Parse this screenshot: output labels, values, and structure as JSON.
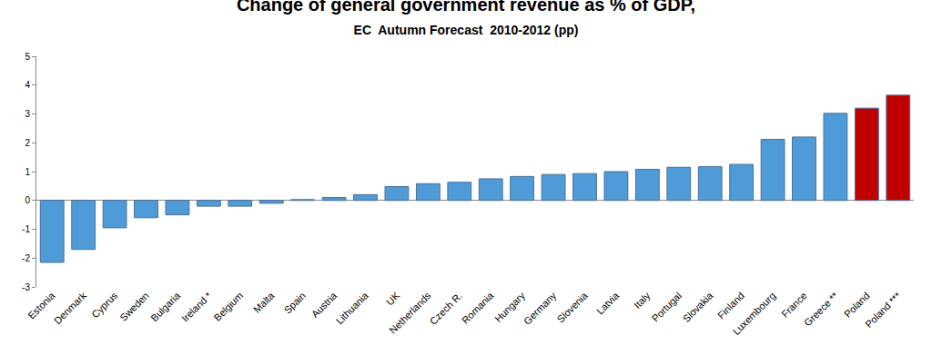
{
  "chart_data": {
    "type": "bar",
    "title": "Change of general government revenue as % of GDP,",
    "subtitle": "EC  Autumn Forecast  2010-2012 (pp)",
    "categories": [
      "Estonia",
      "Denmark",
      "Cyprus",
      "Sweden",
      "Bulgaria",
      "Ireland *",
      "Belgium",
      "Malta",
      "Spain",
      "Austria",
      "Lithuania",
      "UK",
      "Netherlands",
      "Czech R.",
      "Romania",
      "Hungary",
      "Germany",
      "Slovenia",
      "Latvia",
      "Italy",
      "Portugal",
      "Slovakia",
      "Finland",
      "Luxembourg",
      "France",
      "Greece **",
      "Poland",
      "Poland ***"
    ],
    "values": [
      -2.15,
      -1.7,
      -0.95,
      -0.6,
      -0.5,
      -0.2,
      -0.2,
      -0.1,
      0.03,
      0.1,
      0.2,
      0.48,
      0.58,
      0.63,
      0.75,
      0.83,
      0.9,
      0.93,
      1.0,
      1.08,
      1.15,
      1.17,
      1.25,
      2.12,
      2.2,
      3.02,
      3.2,
      3.65
    ],
    "colors": [
      "#4f9bd8",
      "#4f9bd8",
      "#4f9bd8",
      "#4f9bd8",
      "#4f9bd8",
      "#4f9bd8",
      "#4f9bd8",
      "#4f9bd8",
      "#4f9bd8",
      "#4f9bd8",
      "#4f9bd8",
      "#4f9bd8",
      "#4f9bd8",
      "#4f9bd8",
      "#4f9bd8",
      "#4f9bd8",
      "#4f9bd8",
      "#4f9bd8",
      "#4f9bd8",
      "#4f9bd8",
      "#4f9bd8",
      "#4f9bd8",
      "#4f9bd8",
      "#4f9bd8",
      "#4f9bd8",
      "#4f9bd8",
      "#c00000",
      "#c00000"
    ],
    "ylim": [
      -3,
      5
    ],
    "yticks": [
      -3,
      -2,
      -1,
      0,
      1,
      2,
      3,
      4,
      5
    ],
    "grid": false
  }
}
